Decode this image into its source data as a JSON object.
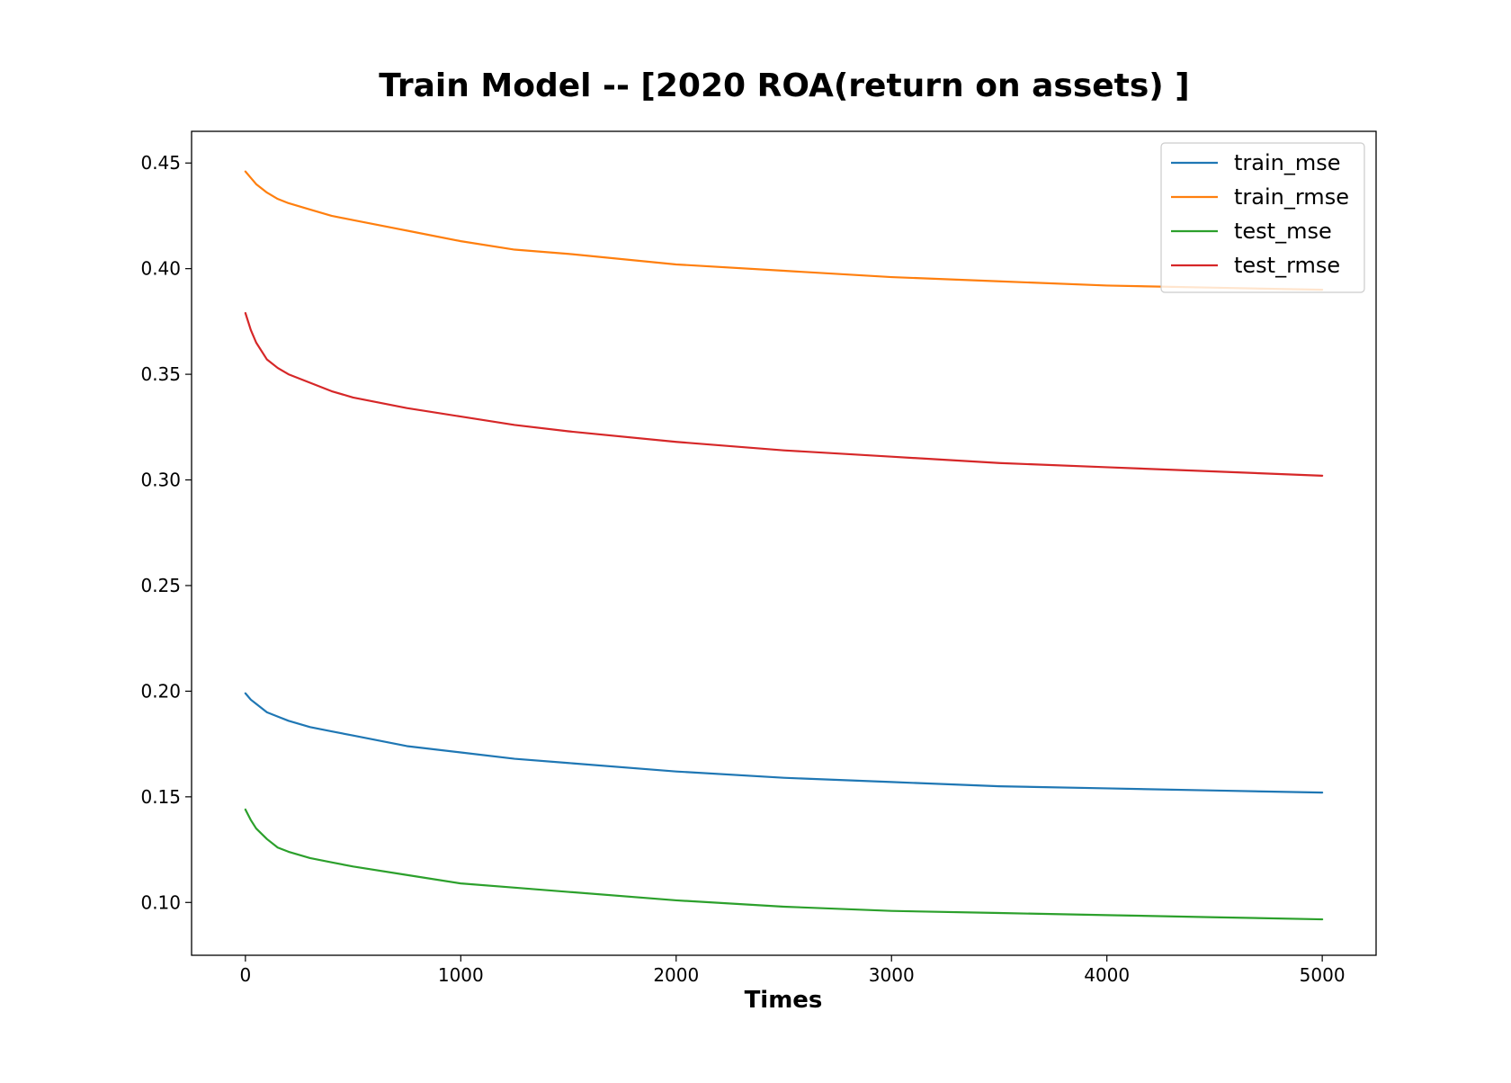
{
  "chart_data": {
    "type": "line",
    "title": "Train Model -- [2020 ROA(return on assets) ]",
    "xlabel": "Times",
    "ylabel": "",
    "xlim": [
      -250,
      5250
    ],
    "ylim": [
      0.075,
      0.465
    ],
    "xticks": [
      0,
      1000,
      2000,
      3000,
      4000,
      5000
    ],
    "xtick_labels": [
      "0",
      "1000",
      "2000",
      "3000",
      "4000",
      "5000"
    ],
    "yticks": [
      0.1,
      0.15,
      0.2,
      0.25,
      0.3,
      0.35,
      0.4,
      0.45
    ],
    "ytick_labels": [
      "0.10",
      "0.15",
      "0.20",
      "0.25",
      "0.30",
      "0.35",
      "0.40",
      "0.45"
    ],
    "grid": false,
    "legend_position": "top-right",
    "x": [
      0,
      25,
      50,
      100,
      150,
      200,
      300,
      400,
      500,
      750,
      1000,
      1250,
      1500,
      2000,
      2500,
      3000,
      3500,
      4000,
      4500,
      5000
    ],
    "series": [
      {
        "name": "train_mse",
        "color": "#1f77b4",
        "values": [
          0.199,
          0.196,
          0.194,
          0.19,
          0.188,
          0.186,
          0.183,
          0.181,
          0.179,
          0.174,
          0.171,
          0.168,
          0.166,
          0.162,
          0.159,
          0.157,
          0.155,
          0.154,
          0.153,
          0.152
        ]
      },
      {
        "name": "train_rmse",
        "color": "#ff7f0e",
        "values": [
          0.446,
          0.443,
          0.44,
          0.436,
          0.433,
          0.431,
          0.428,
          0.425,
          0.423,
          0.418,
          0.413,
          0.409,
          0.407,
          0.402,
          0.399,
          0.396,
          0.394,
          0.392,
          0.391,
          0.39
        ]
      },
      {
        "name": "test_mse",
        "color": "#2ca02c",
        "values": [
          0.144,
          0.139,
          0.135,
          0.13,
          0.126,
          0.124,
          0.121,
          0.119,
          0.117,
          0.113,
          0.109,
          0.107,
          0.105,
          0.101,
          0.098,
          0.096,
          0.095,
          0.094,
          0.093,
          0.092
        ]
      },
      {
        "name": "test_rmse",
        "color": "#d62728",
        "values": [
          0.379,
          0.371,
          0.365,
          0.357,
          0.353,
          0.35,
          0.346,
          0.342,
          0.339,
          0.334,
          0.33,
          0.326,
          0.323,
          0.318,
          0.314,
          0.311,
          0.308,
          0.306,
          0.304,
          0.302
        ]
      }
    ]
  }
}
